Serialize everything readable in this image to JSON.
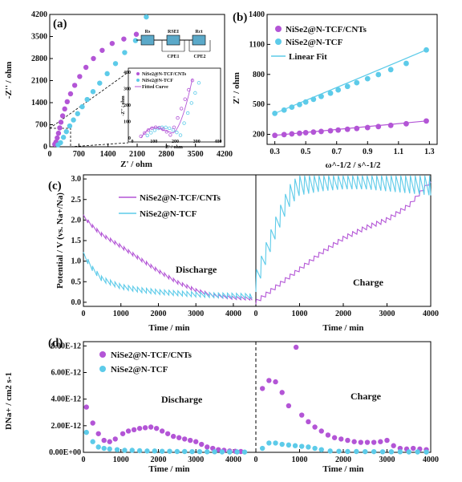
{
  "colors": {
    "purple": "#b355d6",
    "cyan": "#5dcbe9"
  },
  "panel_a": {
    "label": "(a)",
    "xlabel": "Z' / ohm",
    "ylabel": "-Z'' / ohm",
    "xticks": [
      "0",
      "700",
      "1400",
      "2100",
      "2800",
      "3500",
      "4200"
    ],
    "yticks": [
      "0",
      "700",
      "1400",
      "2100",
      "2800",
      "3500",
      "4200"
    ],
    "circuit": {
      "r1": "Rs",
      "r2": "RSEI",
      "r3": "Rct",
      "c1": "CPE1",
      "c2": "CPE2"
    },
    "inset": {
      "xlabel": "Z' / ohm",
      "ylabel": "-Z'' / ohm",
      "xticks": [
        "0",
        "100",
        "200",
        "300",
        "400"
      ],
      "yticks": [
        "0",
        "100",
        "200",
        "300",
        "400"
      ],
      "legend": [
        "NiSe2@N-TCF/CNTs",
        "NiSe2@N-TCF",
        "Fitted Curve"
      ]
    }
  },
  "panel_b": {
    "label": "(b)",
    "xlabel": "ω^-1/2 / s^-1/2",
    "ylabel": "Z' / ohm",
    "xticks": [
      "0.3",
      "0.5",
      "0.7",
      "0.9",
      "1.1",
      "1.3"
    ],
    "yticks": [
      "200",
      "500",
      "800",
      "1100",
      "1400"
    ],
    "legend": [
      "NiSe2@N-TCF/CNTs",
      "NiSe2@N-TCF",
      "Linear Fit"
    ]
  },
  "panel_c": {
    "label": "(c)",
    "ylabel": "Potential / V (vs. Na+/Na)",
    "xlabel": "Time / min",
    "xticks": [
      "0",
      "1000",
      "2000",
      "3000",
      "4000"
    ],
    "yticks": [
      "0.0",
      "0.5",
      "1.0",
      "1.5",
      "2.0",
      "2.5",
      "3.0"
    ],
    "legend": [
      "NiSe2@N-TCF/CNTs",
      "NiSe2@N-TCF"
    ],
    "discharge": "Discharge",
    "charge": "Charge"
  },
  "panel_d": {
    "label": "(d)",
    "ylabel": "DNa+ / cm2 s-1",
    "xlabel": "Time / min",
    "xticks": [
      "0",
      "1000",
      "2000",
      "3000",
      "4000"
    ],
    "yticks": [
      "0.00E+00",
      "2.00E-12",
      "4.00E-12",
      "6.00E-12",
      "8.00E-12"
    ],
    "legend": [
      "NiSe2@N-TCF/CNTs",
      "NiSe2@N-TCF"
    ],
    "discharge": "Discharge",
    "charge": "Charge"
  },
  "chart_data": [
    {
      "type": "scatter",
      "panel": "a",
      "xlabel": "Z' / ohm",
      "ylabel": "-Z'' / ohm",
      "xlim": [
        0,
        4200
      ],
      "ylim": [
        0,
        4200
      ],
      "series": [
        {
          "name": "NiSe2@N-TCF/CNTs",
          "x": [
            120,
            150,
            180,
            210,
            240,
            270,
            310,
            360,
            420,
            500,
            600,
            720,
            870,
            1050,
            1260,
            1500,
            1780,
            2080
          ],
          "y": [
            80,
            150,
            280,
            430,
            600,
            780,
            980,
            1200,
            1430,
            1680,
            1950,
            2230,
            2520,
            2800,
            3060,
            3280,
            3420,
            3570
          ]
        },
        {
          "name": "NiSe2@N-TCF",
          "x": [
            200,
            260,
            330,
            400,
            480,
            570,
            670,
            780,
            900,
            1040,
            1200,
            1380,
            1580,
            1800,
            2060,
            2320
          ],
          "y": [
            60,
            130,
            300,
            480,
            660,
            850,
            1050,
            1270,
            1500,
            1750,
            2020,
            2320,
            2640,
            2990,
            3370,
            4120
          ]
        }
      ]
    },
    {
      "type": "scatter",
      "panel": "b",
      "xlabel": "ω^-1/2 / s^-1/2",
      "ylabel": "Z' / ohm",
      "xlim": [
        0.25,
        1.35
      ],
      "ylim": [
        100,
        1400
      ],
      "series": [
        {
          "name": "NiSe2@N-TCF/CNTs",
          "x": [
            0.3,
            0.36,
            0.41,
            0.46,
            0.5,
            0.55,
            0.6,
            0.66,
            0.71,
            0.77,
            0.83,
            0.9,
            0.97,
            1.05,
            1.15,
            1.28
          ],
          "y": [
            190,
            198,
            205,
            211,
            217,
            223,
            229,
            236,
            243,
            251,
            259,
            268,
            278,
            290,
            306,
            334
          ]
        },
        {
          "name": "NiSe2@N-TCF",
          "x": [
            0.3,
            0.36,
            0.41,
            0.46,
            0.5,
            0.55,
            0.6,
            0.66,
            0.71,
            0.77,
            0.83,
            0.9,
            0.97,
            1.05,
            1.15,
            1.28
          ],
          "y": [
            410,
            443,
            472,
            498,
            524,
            551,
            580,
            612,
            645,
            680,
            717,
            757,
            798,
            848,
            910,
            1045
          ]
        }
      ]
    },
    {
      "type": "line",
      "panel": "c-discharge",
      "xlim": [
        0,
        4600
      ],
      "ylim": [
        -0.1,
        3.1
      ],
      "series": [
        {
          "name": "NiSe2@N-TCF/CNTs",
          "x": [
            0,
            250,
            500,
            1000,
            1500,
            2000,
            2500,
            3000,
            3500,
            4000,
            4500
          ],
          "y": [
            2.05,
            1.8,
            1.6,
            1.32,
            1.02,
            0.72,
            0.45,
            0.25,
            0.12,
            0.07,
            0.05
          ]
        },
        {
          "name": "NiSe2@N-TCF",
          "x": [
            0,
            250,
            500,
            1000,
            1500,
            2000,
            2500,
            3000,
            3500,
            4000,
            4500
          ],
          "y": [
            1.1,
            0.75,
            0.5,
            0.32,
            0.24,
            0.19,
            0.16,
            0.13,
            0.11,
            0.1,
            0.09
          ]
        }
      ]
    },
    {
      "type": "line",
      "panel": "c-charge",
      "xlim": [
        0,
        4000
      ],
      "ylim": [
        -0.1,
        3.1
      ],
      "series": [
        {
          "name": "NiSe2@N-TCF/CNTs",
          "x": [
            0,
            500,
            1000,
            1500,
            2000,
            2500,
            3000,
            3500,
            4000
          ],
          "y": [
            -0.05,
            0.35,
            0.75,
            1.15,
            1.5,
            1.75,
            1.95,
            2.3,
            2.9
          ]
        },
        {
          "name": "NiSe2@N-TCF",
          "x": [
            0,
            250,
            500,
            750,
            1000,
            1500,
            2000,
            2500,
            3000,
            3500,
            4000
          ],
          "y": [
            0.25,
            1.0,
            1.7,
            2.3,
            2.6,
            2.7,
            2.75,
            2.75,
            2.7,
            2.65,
            2.6
          ]
        }
      ]
    },
    {
      "type": "scatter",
      "panel": "d-discharge",
      "xlim": [
        0,
        4600
      ],
      "ylim": [
        0,
        8e-12
      ],
      "series": [
        {
          "name": "NiSe2@N-TCF/CNTs",
          "x": [
            80,
            250,
            400,
            550,
            700,
            850,
            1050,
            1200,
            1350,
            1500,
            1650,
            1800,
            1950,
            2100,
            2250,
            2400,
            2550,
            2700,
            2850,
            3000,
            3150,
            3300,
            3450,
            3600,
            3750,
            3900,
            4050,
            4200
          ],
          "y": [
            3.4e-12,
            2.2e-12,
            1.4e-12,
            9e-13,
            8e-13,
            1e-12,
            1.4e-12,
            1.6e-12,
            1.7e-12,
            1.8e-12,
            1.85e-12,
            1.9e-12,
            1.8e-12,
            1.6e-12,
            1.4e-12,
            1.2e-12,
            1.1e-12,
            1e-12,
            9e-13,
            8e-13,
            6e-13,
            4e-13,
            3e-13,
            2e-13,
            1.5e-13,
            1e-13,
            8e-14,
            6e-14
          ]
        },
        {
          "name": "NiSe2@N-TCF",
          "x": [
            80,
            250,
            400,
            550,
            700,
            900,
            1100,
            1300,
            1500,
            1700,
            1900,
            2100,
            2300,
            2500,
            2700,
            2900,
            3100,
            3300,
            3500,
            3700,
            3900,
            4100,
            4300
          ],
          "y": [
            1.5e-12,
            8e-13,
            4e-13,
            3e-13,
            2.5e-13,
            2e-13,
            1.5e-13,
            1.5e-13,
            1.2e-13,
            1e-13,
            1e-13,
            8e-14,
            8e-14,
            6e-14,
            6e-14,
            5e-14,
            5e-14,
            4e-14,
            4e-14,
            3e-14,
            3e-14,
            3e-14,
            2e-14
          ]
        }
      ]
    },
    {
      "type": "scatter",
      "panel": "d-charge",
      "xlim": [
        0,
        4000
      ],
      "ylim": [
        0,
        8e-12
      ],
      "series": [
        {
          "name": "NiSe2@N-TCF/CNTs",
          "x": [
            150,
            300,
            450,
            600,
            750,
            920,
            1050,
            1200,
            1350,
            1500,
            1650,
            1800,
            1950,
            2100,
            2250,
            2400,
            2550,
            2700,
            2850,
            3000,
            3150,
            3300,
            3450,
            3600,
            3750,
            3900
          ],
          "y": [
            4.8e-12,
            5.4e-12,
            5.3e-12,
            4.5e-12,
            3.5e-12,
            7.9e-12,
            2.8e-12,
            2.3e-12,
            1.9e-12,
            1.6e-12,
            1.3e-12,
            1.1e-12,
            1e-12,
            9e-13,
            8e-13,
            7.5e-13,
            7.5e-13,
            7.5e-13,
            8e-13,
            9e-13,
            5e-13,
            3e-13,
            2.5e-13,
            3e-13,
            2.5e-13,
            2e-13
          ]
        },
        {
          "name": "NiSe2@N-TCF",
          "x": [
            150,
            300,
            450,
            600,
            750,
            900,
            1050,
            1200,
            1350,
            1500,
            1700,
            1900,
            2100,
            2300,
            2500,
            2700,
            2900,
            3100,
            3300,
            3500,
            3700,
            3900
          ],
          "y": [
            3e-13,
            7e-13,
            7e-13,
            6e-13,
            5.5e-13,
            5e-13,
            4.5e-13,
            4e-13,
            3e-13,
            2e-13,
            1e-13,
            8e-14,
            6e-14,
            6e-14,
            5e-14,
            5e-14,
            4e-14,
            4e-14,
            4e-14,
            3e-14,
            3e-14,
            2e-14
          ]
        }
      ]
    }
  ]
}
